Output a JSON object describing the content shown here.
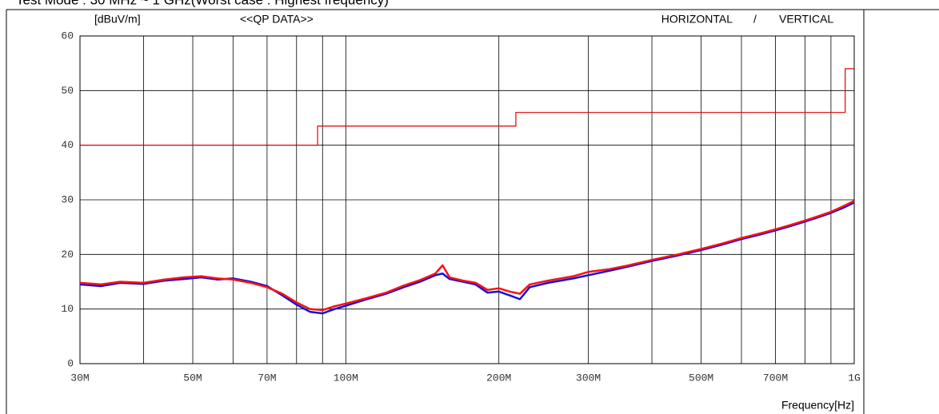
{
  "chart_data": {
    "type": "line",
    "title": "Test Mode : 30 MHz ~ 1 GHz(Worst case : Highest frequency)",
    "y_label": "[dBuV/m]",
    "subtitle": "<<QP DATA>>",
    "x_label": "Frequency[Hz]",
    "legend_separator": "/",
    "log_x": true,
    "grid": true,
    "xlim": [
      30,
      1000
    ],
    "xticks": [
      {
        "value": 30,
        "label": "30M"
      },
      40,
      {
        "value": 50,
        "label": "50M"
      },
      60,
      {
        "value": 70,
        "label": "70M"
      },
      80,
      90,
      {
        "value": 100,
        "label": "100M"
      },
      {
        "value": 200,
        "label": "200M"
      },
      {
        "value": 300,
        "label": "300M"
      },
      400,
      {
        "value": 500,
        "label": "500M"
      },
      600,
      {
        "value": 700,
        "label": "700M"
      },
      800,
      900,
      {
        "value": 1000,
        "label": "1G"
      }
    ],
    "ylim": [
      0,
      60
    ],
    "yticks": [
      0,
      10,
      20,
      30,
      40,
      50,
      60
    ],
    "limit_line": {
      "color": "#e00000",
      "x": [
        30,
        88,
        88,
        216,
        216,
        960,
        960,
        1000
      ],
      "values": [
        40,
        40,
        43.5,
        43.5,
        46,
        46,
        54,
        54
      ]
    },
    "x": [
      30,
      33,
      36,
      40,
      44,
      48,
      52,
      56,
      60,
      65,
      70,
      75,
      80,
      85,
      90,
      95,
      100,
      110,
      120,
      130,
      140,
      150,
      155,
      160,
      170,
      180,
      190,
      200,
      210,
      220,
      230,
      250,
      280,
      300,
      330,
      360,
      400,
      450,
      500,
      550,
      600,
      650,
      700,
      750,
      800,
      850,
      900,
      950,
      1000
    ],
    "series": [
      {
        "name": "HORIZONTAL",
        "color": "#1010e0",
        "values": [
          14.5,
          14.2,
          14.8,
          14.6,
          15.2,
          15.5,
          15.8,
          15.4,
          15.6,
          15,
          14.2,
          12.5,
          10.8,
          9.5,
          9.2,
          10,
          10.6,
          11.8,
          12.8,
          14,
          15,
          16.2,
          16.5,
          15.5,
          15,
          14.5,
          13,
          13.2,
          12.5,
          11.8,
          14,
          14.8,
          15.6,
          16.2,
          17,
          17.8,
          18.8,
          19.8,
          20.8,
          21.8,
          22.8,
          23.6,
          24.4,
          25.2,
          26,
          26.8,
          27.6,
          28.5,
          29.5
        ]
      },
      {
        "name": "VERTICAL",
        "color": "#ff1010",
        "values": [
          14.8,
          14.5,
          15,
          14.8,
          15.4,
          15.8,
          16,
          15.6,
          15.4,
          14.8,
          14,
          12.8,
          11.2,
          10,
          9.8,
          10.5,
          11,
          12,
          13,
          14.3,
          15.3,
          16.5,
          18,
          15.8,
          15.2,
          14.8,
          13.5,
          13.8,
          13.2,
          12.8,
          14.5,
          15.2,
          16,
          16.8,
          17.3,
          18,
          19,
          20,
          21,
          22,
          23,
          23.8,
          24.6,
          25.4,
          26.2,
          27,
          27.8,
          28.8,
          29.8
        ]
      }
    ]
  }
}
